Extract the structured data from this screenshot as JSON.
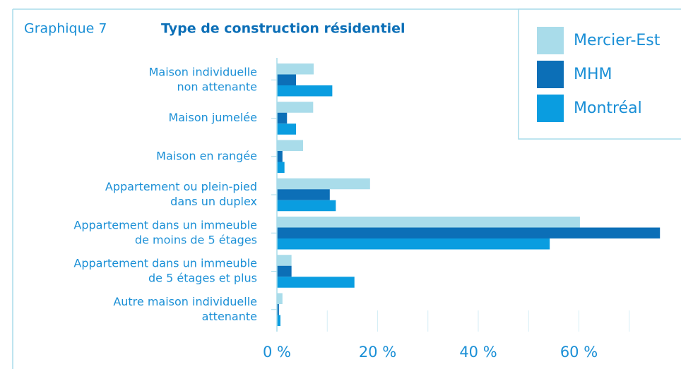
{
  "chart_data": {
    "type": "hbar",
    "label": "Graphique 7",
    "title": "Type de construction résidentiel",
    "categories": [
      [
        "Maison individuelle",
        "non attenante"
      ],
      [
        "Maison jumelée"
      ],
      [
        "Maison en rangée"
      ],
      [
        "Appartement ou plein-pied",
        "dans un duplex"
      ],
      [
        "Appartement dans un immeuble",
        "de moins de 5 étages"
      ],
      [
        "Appartement dans un immeuble",
        "de 5 étages et plus"
      ],
      [
        "Autre maison individuelle",
        "attenante"
      ]
    ],
    "series": [
      {
        "name": "Mercier-Est",
        "color": "#a9dcea",
        "values": [
          7.3,
          7.2,
          5.2,
          18.5,
          60.2,
          2.9,
          1.1
        ]
      },
      {
        "name": "MHM",
        "color": "#0c6fb7",
        "values": [
          3.8,
          2.0,
          1.1,
          10.5,
          76.1,
          2.9,
          0.4
        ]
      },
      {
        "name": "Montréal",
        "color": "#0a9de0",
        "values": [
          11.0,
          3.8,
          1.5,
          11.7,
          54.2,
          15.4,
          0.7
        ]
      }
    ],
    "xlim": [
      0,
      80
    ],
    "xticks": [
      {
        "value": 0,
        "label": "0 %"
      },
      {
        "value": 20,
        "label": "20 %"
      },
      {
        "value": 40,
        "label": "40 %"
      },
      {
        "value": 60,
        "label": "60 %"
      }
    ],
    "minor_xticks": [
      10,
      30,
      50,
      70
    ],
    "legend": "top-right"
  }
}
